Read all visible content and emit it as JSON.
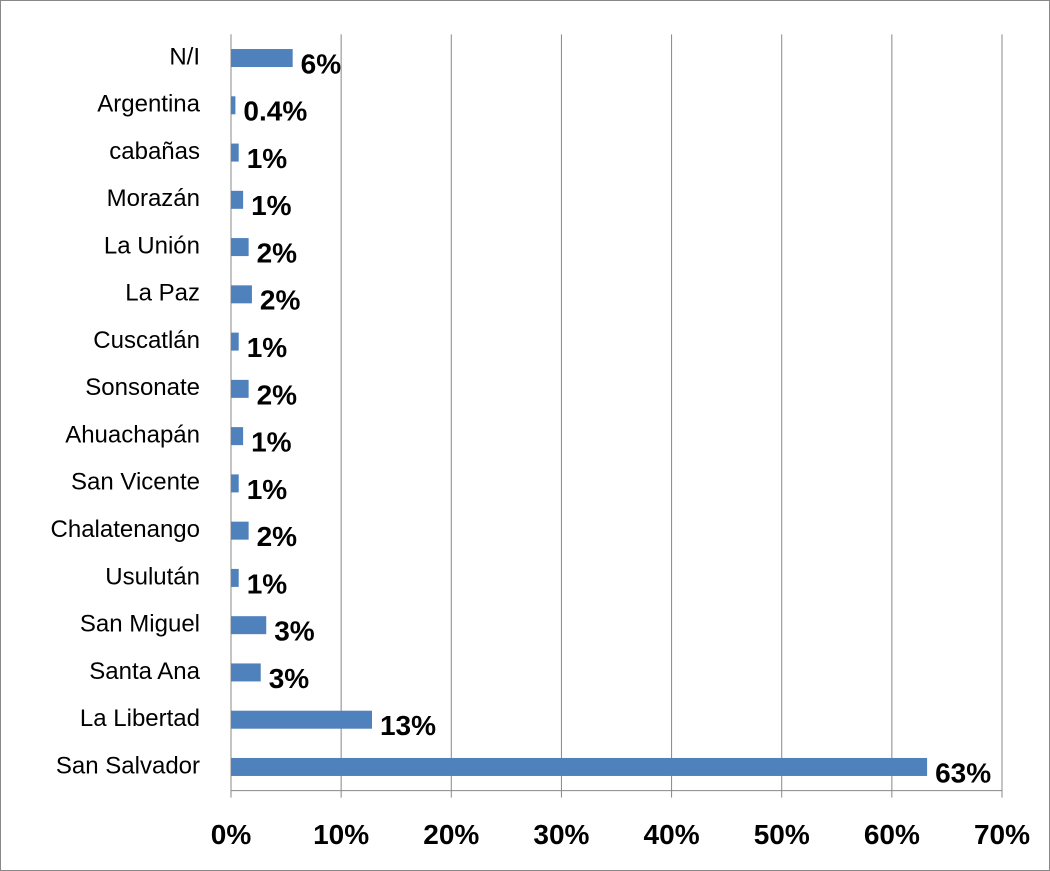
{
  "chart_data": {
    "type": "bar",
    "orientation": "horizontal",
    "categories": [
      "San Salvador",
      "La Libertad",
      "Santa Ana",
      "San Miguel",
      "Usulután",
      "Chalatenango",
      "San Vicente",
      "Ahuachapán",
      "Sonsonate",
      "Cuscatlán",
      "La Paz",
      "La Unión",
      "Morazán",
      "cabañas",
      "Argentina",
      "N/I"
    ],
    "values": [
      63.2,
      12.8,
      2.7,
      3.2,
      0.7,
      1.6,
      0.7,
      1.1,
      1.6,
      0.7,
      1.9,
      1.6,
      1.1,
      0.7,
      0.4,
      5.6
    ],
    "value_labels": [
      "63%",
      "13%",
      "3%",
      "3%",
      "1%",
      "2%",
      "1%",
      "1%",
      "2%",
      "1%",
      "2%",
      "2%",
      "1%",
      "1%",
      "0.4%",
      "6%"
    ],
    "color": "#4f81bd",
    "xlim": [
      0,
      70
    ],
    "xticks": [
      {
        "value": 0,
        "label": "0%"
      },
      {
        "value": 10,
        "label": "10%"
      },
      {
        "value": 20,
        "label": "20%"
      },
      {
        "value": 30,
        "label": "30%"
      },
      {
        "value": 40,
        "label": "40%"
      },
      {
        "value": 50,
        "label": "50%"
      },
      {
        "value": 60,
        "label": "60%"
      },
      {
        "value": 70,
        "label": "70%"
      }
    ],
    "grid": true
  }
}
